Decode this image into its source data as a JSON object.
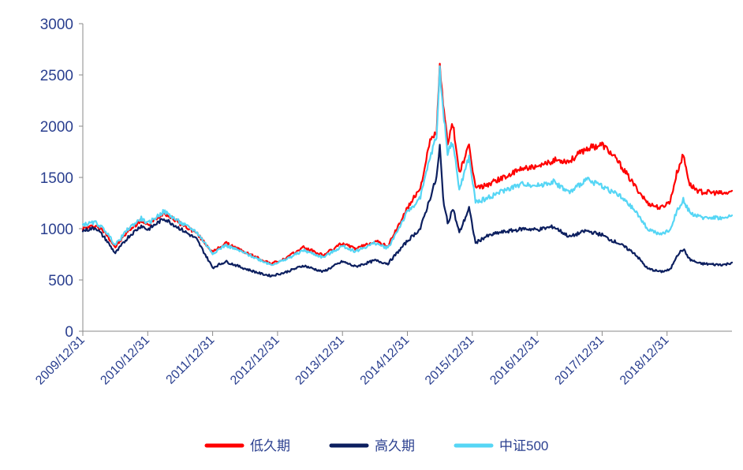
{
  "chart_data": {
    "type": "line",
    "title": "",
    "xlabel": "",
    "ylabel": "",
    "ylim": [
      0,
      3000
    ],
    "yticks": [
      "0",
      "500",
      "1000",
      "1500",
      "2000",
      "2500",
      "3000"
    ],
    "categories": [
      "2009/12/31",
      "2010/12/31",
      "2011/12/31",
      "2012/12/31",
      "2013/12/31",
      "2014/12/31",
      "2015/12/31",
      "2016/12/31",
      "2017/12/31",
      "2018/12/31"
    ],
    "x_range": [
      0,
      10
    ],
    "grid": false,
    "legend_position": "bottom",
    "series": [
      {
        "name": "低久期",
        "color": "#ff0000",
        "points": [
          [
            0,
            1000
          ],
          [
            0.2,
            1030
          ],
          [
            0.35,
            960
          ],
          [
            0.5,
            820
          ],
          [
            0.7,
            980
          ],
          [
            0.9,
            1080
          ],
          [
            1.0,
            1030
          ],
          [
            1.25,
            1160
          ],
          [
            1.5,
            1050
          ],
          [
            1.75,
            960
          ],
          [
            2.0,
            770
          ],
          [
            2.2,
            860
          ],
          [
            2.5,
            770
          ],
          [
            2.75,
            700
          ],
          [
            2.9,
            660
          ],
          [
            3.1,
            700
          ],
          [
            3.4,
            820
          ],
          [
            3.7,
            740
          ],
          [
            4.0,
            860
          ],
          [
            4.2,
            800
          ],
          [
            4.5,
            880
          ],
          [
            4.7,
            830
          ],
          [
            5.0,
            1200
          ],
          [
            5.2,
            1400
          ],
          [
            5.35,
            1850
          ],
          [
            5.45,
            1950
          ],
          [
            5.5,
            2580
          ],
          [
            5.55,
            2200
          ],
          [
            5.62,
            1850
          ],
          [
            5.7,
            2020
          ],
          [
            5.8,
            1550
          ],
          [
            5.95,
            1800
          ],
          [
            6.05,
            1400
          ],
          [
            6.2,
            1420
          ],
          [
            6.4,
            1480
          ],
          [
            6.6,
            1530
          ],
          [
            6.8,
            1600
          ],
          [
            7.0,
            1590
          ],
          [
            7.25,
            1670
          ],
          [
            7.5,
            1660
          ],
          [
            7.75,
            1780
          ],
          [
            8.0,
            1820
          ],
          [
            8.1,
            1760
          ],
          [
            8.25,
            1650
          ],
          [
            8.5,
            1420
          ],
          [
            8.7,
            1250
          ],
          [
            8.9,
            1200
          ],
          [
            9.05,
            1270
          ],
          [
            9.15,
            1540
          ],
          [
            9.25,
            1720
          ],
          [
            9.35,
            1430
          ],
          [
            9.5,
            1360
          ],
          [
            9.75,
            1350
          ],
          [
            9.9,
            1340
          ],
          [
            10.0,
            1370
          ]
        ]
      },
      {
        "name": "高久期",
        "color": "#0c1f5f",
        "points": [
          [
            0,
            980
          ],
          [
            0.2,
            1010
          ],
          [
            0.35,
            900
          ],
          [
            0.5,
            760
          ],
          [
            0.7,
            920
          ],
          [
            0.9,
            1030
          ],
          [
            1.0,
            990
          ],
          [
            1.25,
            1100
          ],
          [
            1.5,
            1000
          ],
          [
            1.75,
            900
          ],
          [
            2.0,
            620
          ],
          [
            2.2,
            680
          ],
          [
            2.5,
            610
          ],
          [
            2.75,
            560
          ],
          [
            2.9,
            540
          ],
          [
            3.1,
            570
          ],
          [
            3.4,
            640
          ],
          [
            3.7,
            580
          ],
          [
            4.0,
            680
          ],
          [
            4.2,
            630
          ],
          [
            4.5,
            690
          ],
          [
            4.7,
            660
          ],
          [
            5.0,
            880
          ],
          [
            5.2,
            1000
          ],
          [
            5.35,
            1300
          ],
          [
            5.45,
            1500
          ],
          [
            5.5,
            1800
          ],
          [
            5.55,
            1300
          ],
          [
            5.62,
            1050
          ],
          [
            5.7,
            1200
          ],
          [
            5.8,
            960
          ],
          [
            5.95,
            1200
          ],
          [
            6.05,
            860
          ],
          [
            6.2,
            920
          ],
          [
            6.4,
            960
          ],
          [
            6.6,
            980
          ],
          [
            6.8,
            1000
          ],
          [
            7.0,
            990
          ],
          [
            7.25,
            1020
          ],
          [
            7.5,
            920
          ],
          [
            7.75,
            980
          ],
          [
            8.0,
            940
          ],
          [
            8.1,
            900
          ],
          [
            8.25,
            860
          ],
          [
            8.5,
            760
          ],
          [
            8.7,
            610
          ],
          [
            8.9,
            580
          ],
          [
            9.05,
            600
          ],
          [
            9.15,
            740
          ],
          [
            9.25,
            800
          ],
          [
            9.35,
            700
          ],
          [
            9.5,
            660
          ],
          [
            9.75,
            650
          ],
          [
            9.9,
            650
          ],
          [
            10.0,
            670
          ]
        ]
      },
      {
        "name": "中证500",
        "color": "#56d6f5",
        "points": [
          [
            0,
            1040
          ],
          [
            0.2,
            1060
          ],
          [
            0.35,
            980
          ],
          [
            0.5,
            840
          ],
          [
            0.7,
            1000
          ],
          [
            0.9,
            1100
          ],
          [
            1.0,
            1050
          ],
          [
            1.25,
            1170
          ],
          [
            1.5,
            1060
          ],
          [
            1.75,
            970
          ],
          [
            2.0,
            760
          ],
          [
            2.2,
            840
          ],
          [
            2.5,
            760
          ],
          [
            2.75,
            690
          ],
          [
            2.9,
            650
          ],
          [
            3.1,
            690
          ],
          [
            3.4,
            790
          ],
          [
            3.7,
            720
          ],
          [
            4.0,
            830
          ],
          [
            4.2,
            780
          ],
          [
            4.5,
            860
          ],
          [
            4.7,
            810
          ],
          [
            5.0,
            1160
          ],
          [
            5.2,
            1300
          ],
          [
            5.35,
            1700
          ],
          [
            5.45,
            1900
          ],
          [
            5.5,
            2560
          ],
          [
            5.55,
            2150
          ],
          [
            5.62,
            1750
          ],
          [
            5.7,
            1850
          ],
          [
            5.8,
            1380
          ],
          [
            5.95,
            1700
          ],
          [
            6.05,
            1260
          ],
          [
            6.2,
            1290
          ],
          [
            6.4,
            1350
          ],
          [
            6.6,
            1400
          ],
          [
            6.8,
            1440
          ],
          [
            7.0,
            1420
          ],
          [
            7.25,
            1460
          ],
          [
            7.5,
            1350
          ],
          [
            7.75,
            1480
          ],
          [
            8.0,
            1420
          ],
          [
            8.1,
            1380
          ],
          [
            8.25,
            1330
          ],
          [
            8.5,
            1180
          ],
          [
            8.7,
            1000
          ],
          [
            8.9,
            940
          ],
          [
            9.05,
            990
          ],
          [
            9.15,
            1170
          ],
          [
            9.25,
            1280
          ],
          [
            9.35,
            1160
          ],
          [
            9.5,
            1110
          ],
          [
            9.75,
            1110
          ],
          [
            9.9,
            1100
          ],
          [
            10.0,
            1130
          ]
        ]
      }
    ]
  }
}
